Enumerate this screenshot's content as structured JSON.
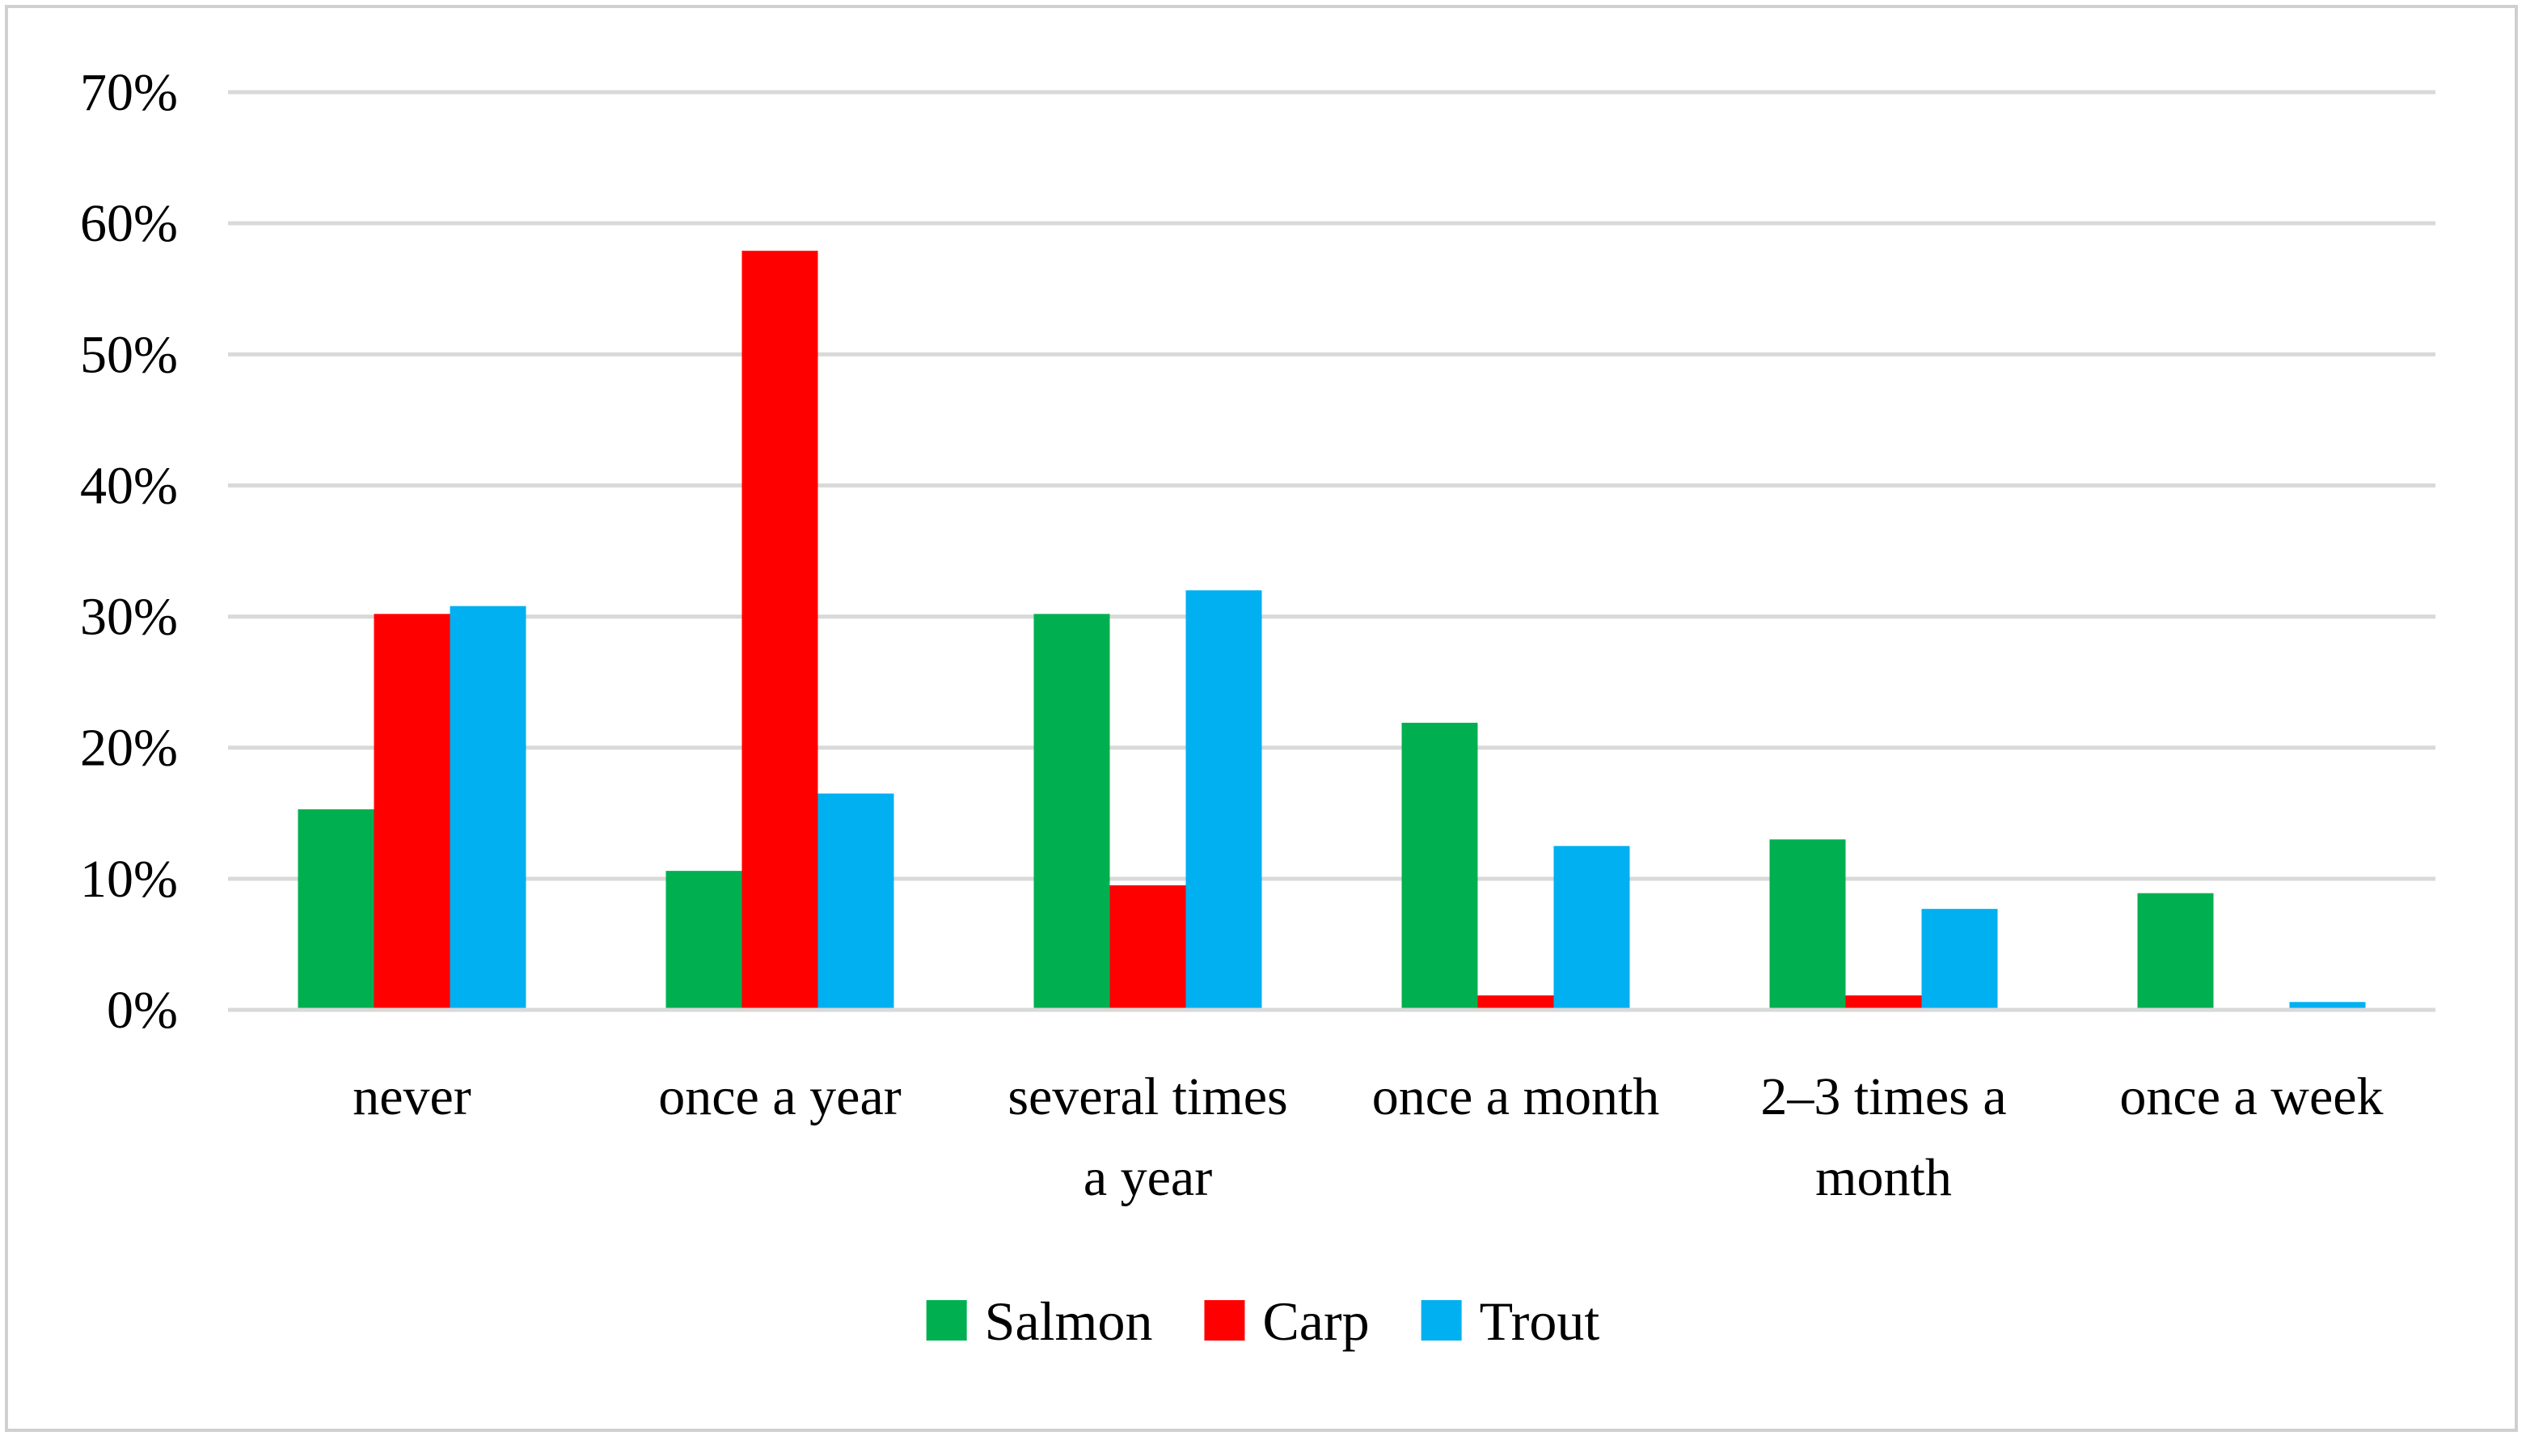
{
  "chart_data": {
    "type": "bar",
    "title": "",
    "xlabel": "",
    "ylabel": "",
    "categories": [
      [
        "never"
      ],
      [
        "once a year"
      ],
      [
        "several times",
        "a year"
      ],
      [
        "once a month"
      ],
      [
        "2–3 times a",
        "month"
      ],
      [
        "once a week"
      ]
    ],
    "series": [
      {
        "name": "Salmon",
        "color": "#00b050",
        "values": [
          15.3,
          10.6,
          30.2,
          21.9,
          13.0,
          8.9
        ]
      },
      {
        "name": "Carp",
        "color": "#ff0000",
        "values": [
          30.2,
          57.9,
          9.5,
          1.1,
          1.1,
          0
        ]
      },
      {
        "name": "Trout",
        "color": "#00b0f0",
        "values": [
          30.8,
          16.5,
          32.0,
          12.5,
          7.7,
          0.6
        ]
      }
    ],
    "ylim": [
      0,
      70
    ],
    "yticks": [
      0,
      10,
      20,
      30,
      40,
      50,
      60,
      70
    ],
    "ytick_labels": [
      "0%",
      "10%",
      "20%",
      "30%",
      "40%",
      "50%",
      "60%",
      "70%"
    ],
    "grid": true,
    "legend": "bottom-center"
  }
}
